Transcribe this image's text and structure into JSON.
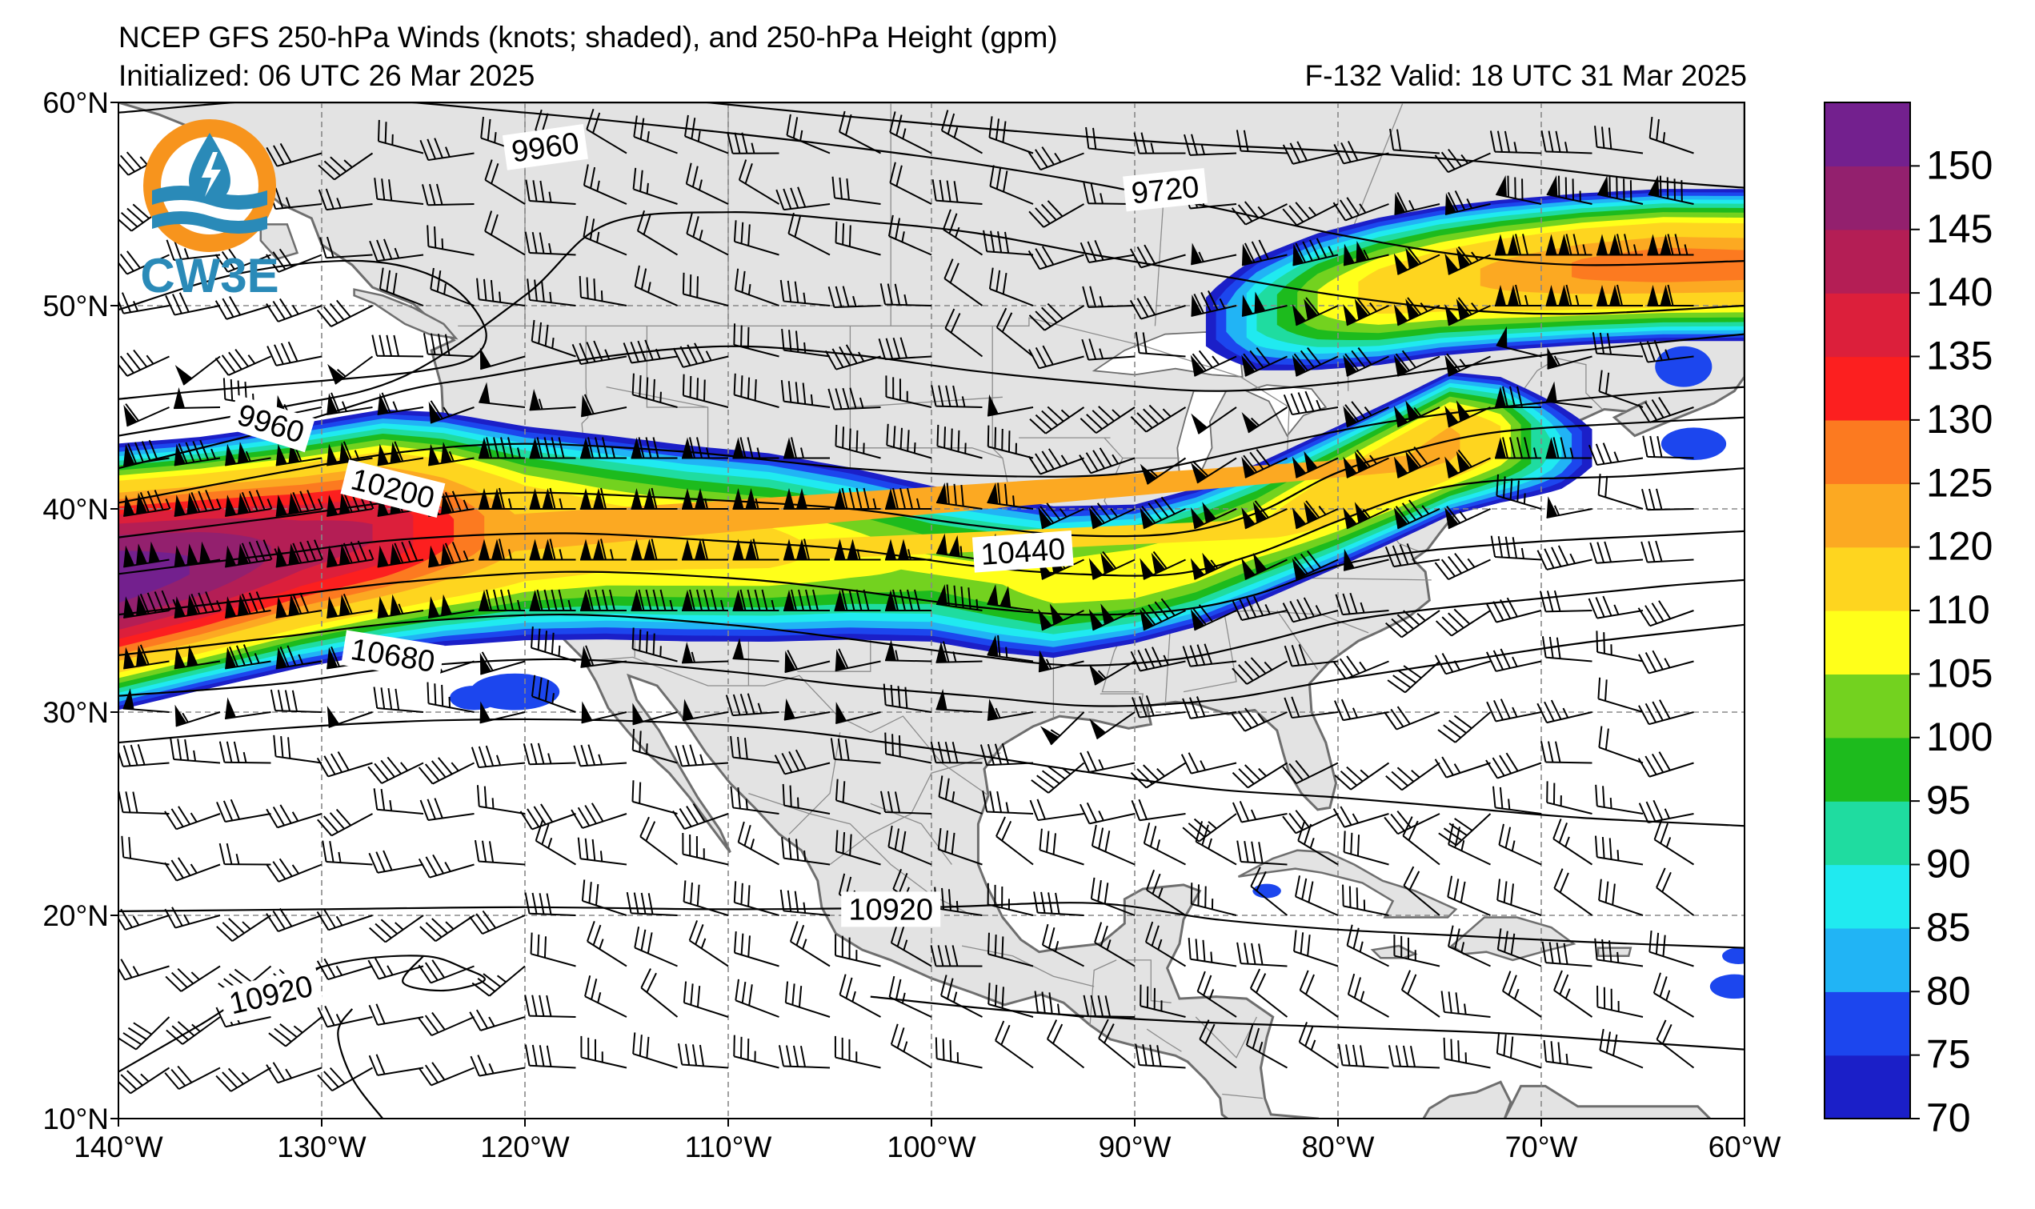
{
  "header": {
    "title": "NCEP GFS 250-hPa Winds (knots; shaded), and 250-hPa Height (gpm)",
    "init": "Initialized: 06 UTC 26 Mar 2025",
    "valid": "F-132  Valid: 18 UTC 31 Mar 2025"
  },
  "logo": {
    "text": "CW3E",
    "ring_color": "#f7941d",
    "wave_color": "#2a8ab8"
  },
  "map": {
    "lon_range": [
      -140,
      -60
    ],
    "lat_range": [
      10,
      60
    ],
    "lon_ticks": [
      {
        "v": -140,
        "label": "140°W"
      },
      {
        "v": -130,
        "label": "130°W"
      },
      {
        "v": -120,
        "label": "120°W"
      },
      {
        "v": -110,
        "label": "110°W"
      },
      {
        "v": -100,
        "label": "100°W"
      },
      {
        "v": -90,
        "label": "90°W"
      },
      {
        "v": -80,
        "label": "80°W"
      },
      {
        "v": -70,
        "label": "70°W"
      },
      {
        "v": -60,
        "label": "60°W"
      }
    ],
    "lat_ticks": [
      {
        "v": 10,
        "label": "10°N"
      },
      {
        "v": 20,
        "label": "20°N"
      },
      {
        "v": 30,
        "label": "30°N"
      },
      {
        "v": 40,
        "label": "40°N"
      },
      {
        "v": 50,
        "label": "50°N"
      },
      {
        "v": 60,
        "label": "60°N"
      }
    ],
    "land_color": "#e3e3e3",
    "coast_color": "#6e6e6e",
    "contour_labels": [
      {
        "text": "9960",
        "lon": -119.0,
        "lat": 57.8,
        "angle": 8
      },
      {
        "text": "9720",
        "lon": -88.5,
        "lat": 55.7,
        "angle": 6
      },
      {
        "text": "9960",
        "lon": -132.5,
        "lat": 44.2,
        "angle": -17
      },
      {
        "text": "10200",
        "lon": -126.5,
        "lat": 41.0,
        "angle": -14
      },
      {
        "text": "10440",
        "lon": -95.5,
        "lat": 37.9,
        "angle": 4
      },
      {
        "text": "10680",
        "lon": -126.5,
        "lat": 32.8,
        "angle": -9
      },
      {
        "text": "10920",
        "lon": -102.0,
        "lat": 20.3,
        "angle": 0
      },
      {
        "text": "10920",
        "lon": -132.5,
        "lat": 16.1,
        "angle": 13
      }
    ]
  },
  "colorbar": {
    "levels": [
      70,
      75,
      80,
      85,
      90,
      95,
      100,
      105,
      110,
      120,
      125,
      130,
      135,
      140,
      145,
      150,
      155
    ],
    "colors": [
      "#1b1fc8",
      "#1c46ee",
      "#21b4f5",
      "#20eaf0",
      "#1fdca0",
      "#1dbb1d",
      "#73d21f",
      "#ffff1a",
      "#fed51f",
      "#fca922",
      "#fc7a20",
      "#fc1f1f",
      "#dc1f3b",
      "#b41e55",
      "#93206e",
      "#73208e"
    ],
    "tick_labels": [
      {
        "v": 70,
        "label": "70"
      },
      {
        "v": 75,
        "label": "75"
      },
      {
        "v": 80,
        "label": "80"
      },
      {
        "v": 85,
        "label": "85"
      },
      {
        "v": 90,
        "label": "90"
      },
      {
        "v": 95,
        "label": "95"
      },
      {
        "v": 100,
        "label": "100"
      },
      {
        "v": 105,
        "label": "105"
      },
      {
        "v": 110,
        "label": "110"
      },
      {
        "v": 120,
        "label": "120"
      },
      {
        "v": 125,
        "label": "125"
      },
      {
        "v": 130,
        "label": "130"
      },
      {
        "v": 135,
        "label": "135"
      },
      {
        "v": 140,
        "label": "140"
      },
      {
        "v": 145,
        "label": "145"
      },
      {
        "v": 150,
        "label": "150"
      }
    ]
  }
}
